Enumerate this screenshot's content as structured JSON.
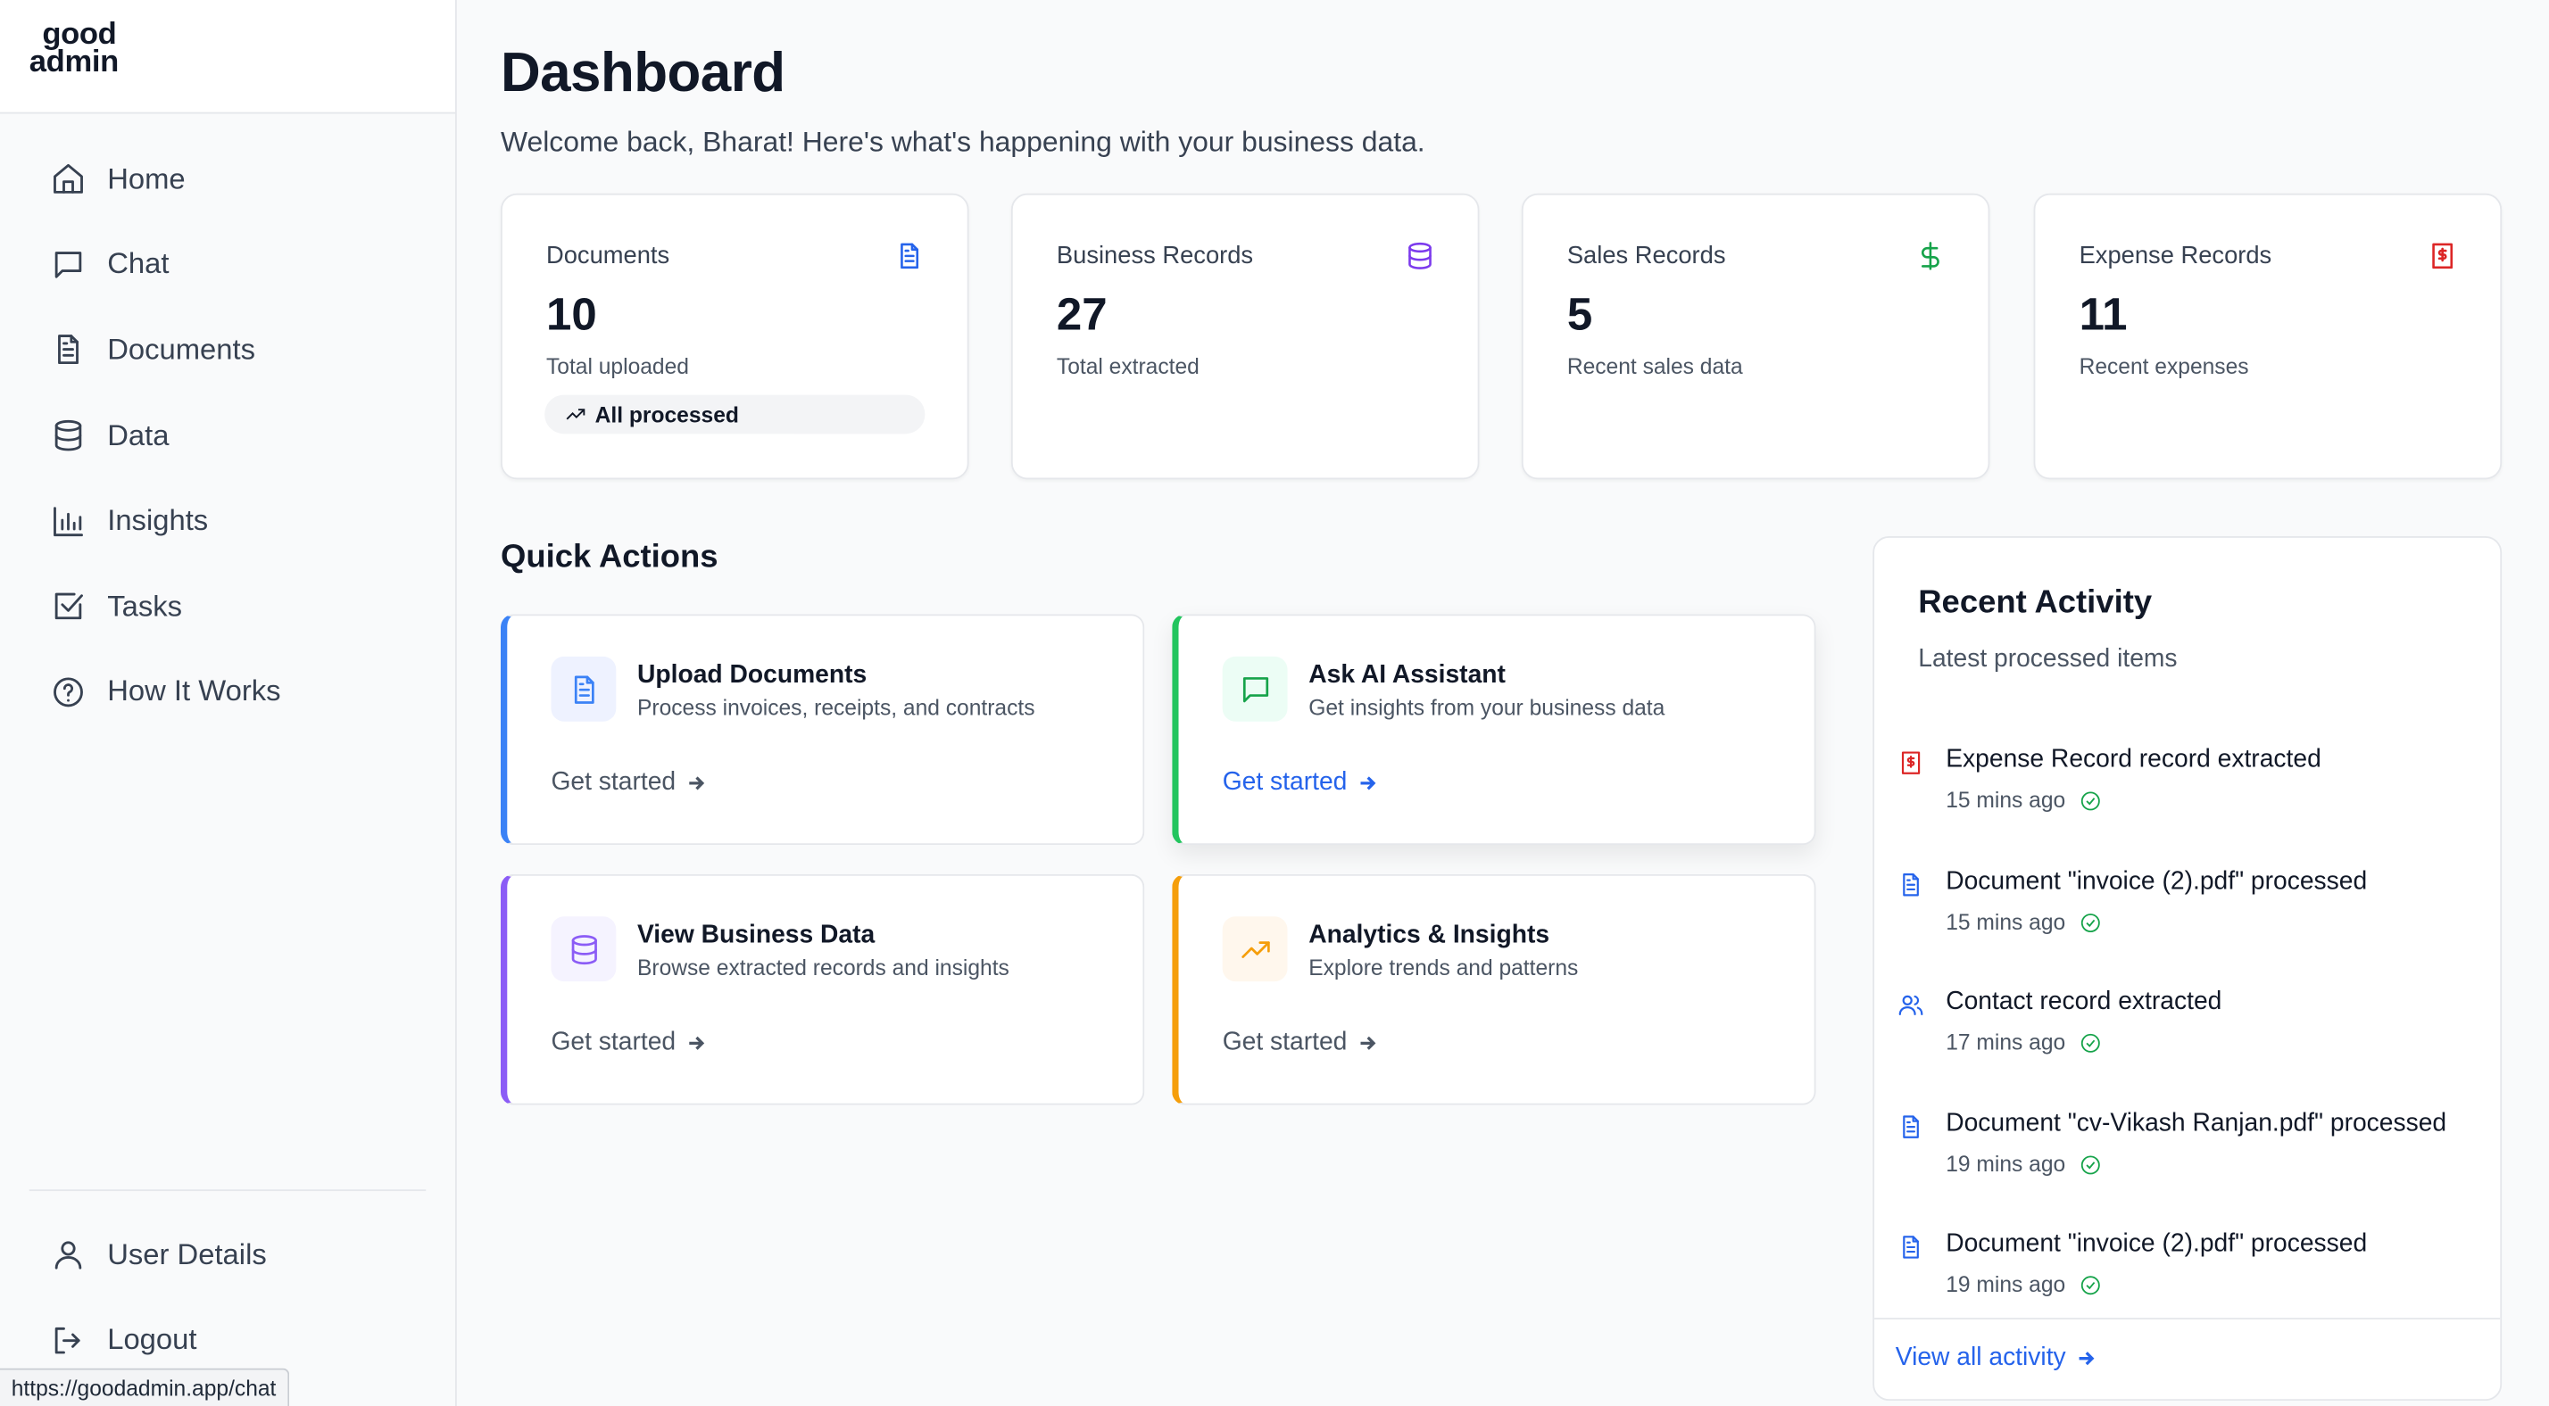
{
  "brand": {
    "line1": "good",
    "line2": "admin"
  },
  "sidebar": {
    "items": [
      {
        "label": "Home",
        "icon": "home-icon"
      },
      {
        "label": "Chat",
        "icon": "chat-icon"
      },
      {
        "label": "Documents",
        "icon": "document-icon"
      },
      {
        "label": "Data",
        "icon": "database-icon"
      },
      {
        "label": "Insights",
        "icon": "bar-chart-icon"
      },
      {
        "label": "Tasks",
        "icon": "checkbox-icon"
      },
      {
        "label": "How It Works",
        "icon": "help-icon"
      }
    ],
    "bottom_items": [
      {
        "label": "User Details",
        "icon": "user-icon"
      },
      {
        "label": "Logout",
        "icon": "logout-icon"
      }
    ]
  },
  "status_url": "https://goodadmin.app/chat",
  "header": {
    "title": "Dashboard",
    "subtitle": "Welcome back, Bharat! Here's what's happening with your business data."
  },
  "stats": [
    {
      "label": "Documents",
      "value": "10",
      "note": "Total uploaded",
      "badge": "All processed",
      "icon": "file-text-icon",
      "color": "#2563eb"
    },
    {
      "label": "Business Records",
      "value": "27",
      "note": "Total extracted",
      "icon": "database-icon",
      "color": "#7c3aed"
    },
    {
      "label": "Sales Records",
      "value": "5",
      "note": "Recent sales data",
      "icon": "dollar-icon",
      "color": "#16a34a"
    },
    {
      "label": "Expense Records",
      "value": "11",
      "note": "Recent expenses",
      "icon": "receipt-icon",
      "color": "#dc2626"
    }
  ],
  "quick_actions": {
    "title": "Quick Actions",
    "items": [
      {
        "name": "Upload Documents",
        "desc": "Process invoices, receipts, and contracts",
        "link": "Get started",
        "icon": "file-text-icon",
        "accent": "#3b82f6"
      },
      {
        "name": "Ask AI Assistant",
        "desc": "Get insights from your business data",
        "link": "Get started",
        "icon": "chat-icon",
        "accent": "#22c55e"
      },
      {
        "name": "View Business Data",
        "desc": "Browse extracted records and insights",
        "link": "Get started",
        "icon": "database-icon",
        "accent": "#8b5cf6"
      },
      {
        "name": "Analytics & Insights",
        "desc": "Explore trends and patterns",
        "link": "Get started",
        "icon": "trending-up-icon",
        "accent": "#f59e0b"
      }
    ]
  },
  "activity": {
    "title": "Recent Activity",
    "subtitle": "Latest processed items",
    "items": [
      {
        "text": "Expense Record record extracted",
        "time": "15 mins ago",
        "icon": "receipt-icon"
      },
      {
        "text": "Document \"invoice (2).pdf\" processed",
        "time": "15 mins ago",
        "icon": "file-text-icon"
      },
      {
        "text": "Contact record extracted",
        "time": "17 mins ago",
        "icon": "users-icon"
      },
      {
        "text": "Document \"cv-Vikash Ranjan.pdf\" processed",
        "time": "19 mins ago",
        "icon": "file-text-icon"
      },
      {
        "text": "Document \"invoice (2).pdf\" processed",
        "time": "19 mins ago",
        "icon": "file-text-icon"
      }
    ],
    "footer_link": "View all activity"
  }
}
